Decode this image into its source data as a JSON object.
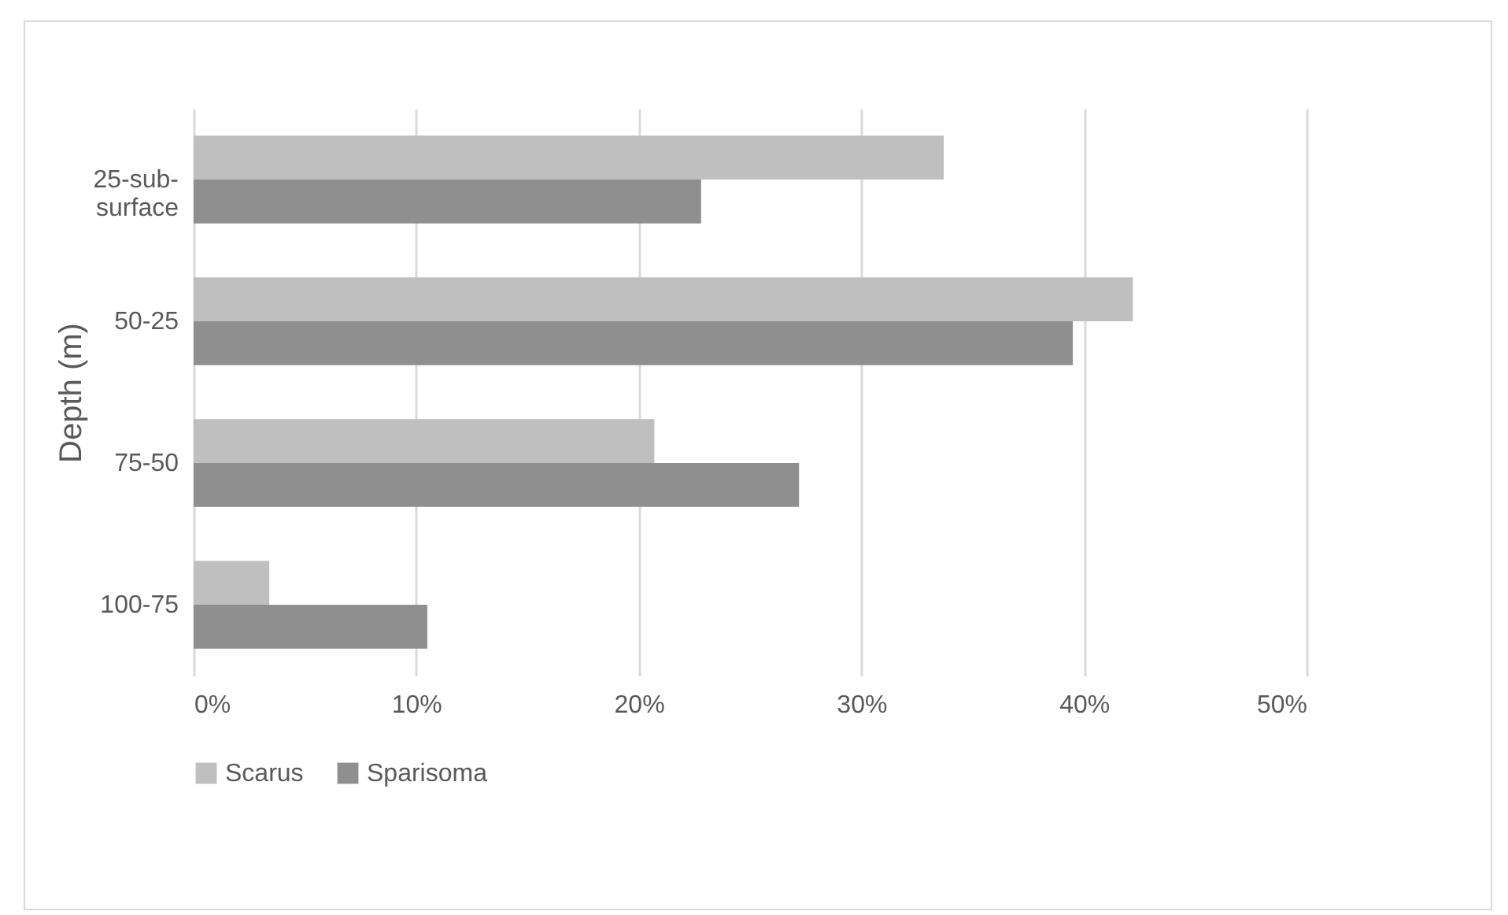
{
  "chart_data": {
    "type": "bar",
    "orientation": "horizontal",
    "ylabel": "Depth (m)",
    "categories": [
      "25-sub-surface",
      "50-25",
      "75-50",
      "100-75"
    ],
    "series": [
      {
        "name": "Scarus",
        "color": "#bfbfbf",
        "values": [
          33.7,
          42.2,
          20.7,
          3.4
        ]
      },
      {
        "name": "Sparisoma",
        "color": "#8f8f8f",
        "values": [
          22.8,
          39.5,
          27.2,
          10.5
        ]
      }
    ],
    "xlim": [
      0,
      50
    ],
    "xticks": [
      {
        "value": 0,
        "label": "0%"
      },
      {
        "value": 10,
        "label": "10%"
      },
      {
        "value": 20,
        "label": "20%"
      },
      {
        "value": 30,
        "label": "30%"
      },
      {
        "value": 40,
        "label": "40%"
      },
      {
        "value": 50,
        "label": "50%"
      }
    ],
    "grid": "x",
    "legend": "bottom"
  }
}
